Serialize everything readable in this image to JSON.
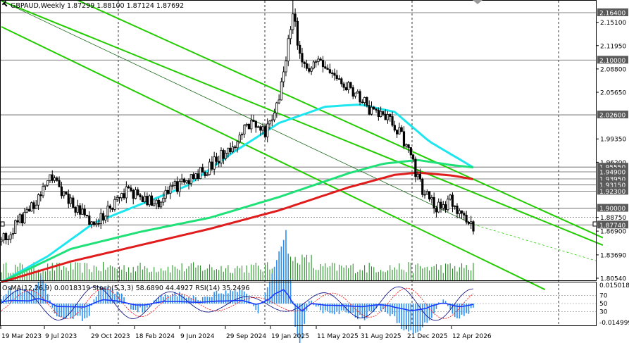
{
  "header": {
    "symbol": "GBPAUD,Weekly",
    "ohlc": "1.87299 1.88100 1.87124 1.87692"
  },
  "indicator_header": "OsMA(12,26,9) 0.0018319  Stoch(5,3,3) 58.6890 44.4927  RSI(14) 35.2496",
  "price_axis": [
    {
      "text": "2.16400",
      "y": 2.164,
      "box": true
    },
    {
      "text": "2.15100",
      "y": 2.151,
      "box": false
    },
    {
      "text": "2.11950",
      "y": 2.1195,
      "box": false
    },
    {
      "text": "2.10000",
      "y": 2.1,
      "box": true
    },
    {
      "text": "2.08800",
      "y": 2.088,
      "box": false
    },
    {
      "text": "2.05650",
      "y": 2.0565,
      "box": false
    },
    {
      "text": "2.02600",
      "y": 2.026,
      "box": true
    },
    {
      "text": "1.99350",
      "y": 1.9935,
      "box": false
    },
    {
      "text": "1.96200",
      "y": 1.962,
      "box": false
    },
    {
      "text": "1.95550",
      "y": 1.9555,
      "box": true
    },
    {
      "text": "1.94900",
      "y": 1.949,
      "box": true
    },
    {
      "text": "1.93950",
      "y": 1.9395,
      "box": true
    },
    {
      "text": "1.93150",
      "y": 1.9315,
      "box": true
    },
    {
      "text": "1.92300",
      "y": 1.923,
      "box": true
    },
    {
      "text": "1.90000",
      "y": 1.9,
      "box": true
    },
    {
      "text": "1.88750",
      "y": 1.8875,
      "box": false
    },
    {
      "text": "1.87740",
      "y": 1.8774,
      "box": true
    },
    {
      "text": "1.86900",
      "y": 1.869,
      "box": false
    },
    {
      "text": "1.83690",
      "y": 1.8369,
      "box": false
    },
    {
      "text": "1.80540",
      "y": 1.8054,
      "box": false
    }
  ],
  "indicator_axis": [
    {
      "text": "0.0150183",
      "v": "top"
    },
    {
      "text": "70",
      "v": "70"
    },
    {
      "text": "50",
      "v": "50"
    },
    {
      "text": "30",
      "v": "30"
    },
    {
      "text": "-0.014999",
      "v": "bottom"
    }
  ],
  "time_axis": [
    "19 Mar 2023",
    "9 Jul 2023",
    "29 Oct 2023",
    "18 Feb 2024",
    "9 Jun 2024",
    "29 Sep 2024",
    "19 Jan 2025",
    "11 May 2025",
    "31 Aug 2025",
    "21 Dec 2025",
    "12 Apr 2026"
  ],
  "colors": {
    "bull_candle": "#000000",
    "ma_fast": "#1ee6ee",
    "ma_mid": "#20e078",
    "ma_slow": "#e01c1c",
    "channel": "#22cc00",
    "volume": "#1a8a1a",
    "osma": "#2a8ff0",
    "stoch_main": "#000080",
    "stoch_signal": "#ff0000",
    "rsi": "#1a3aff",
    "grid_dash": "#000000"
  },
  "chart_data": {
    "type": "candlestick",
    "symbol": "GBPAUD",
    "timeframe": "Weekly",
    "ylim": [
      1.79,
      2.18
    ],
    "x_ticks": [
      "19 Mar 2023",
      "9 Jul 2023",
      "29 Oct 2023",
      "18 Feb 2024",
      "9 Jun 2024",
      "29 Sep 2024",
      "19 Jan 2025",
      "11 May 2025",
      "31 Aug 2025",
      "21 Dec 2025",
      "12 Apr 2026"
    ],
    "price_path": [
      [
        0,
        1.855
      ],
      [
        8,
        1.885
      ],
      [
        16,
        1.91
      ],
      [
        20,
        1.945
      ],
      [
        26,
        1.925
      ],
      [
        34,
        1.895
      ],
      [
        40,
        1.87
      ],
      [
        46,
        1.9
      ],
      [
        54,
        1.925
      ],
      [
        60,
        1.915
      ],
      [
        66,
        1.905
      ],
      [
        74,
        1.925
      ],
      [
        80,
        1.94
      ],
      [
        90,
        1.955
      ],
      [
        100,
        1.985
      ],
      [
        108,
        2.015
      ],
      [
        114,
        2.0
      ],
      [
        120,
        2.05
      ],
      [
        126,
        2.165
      ],
      [
        130,
        2.09
      ],
      [
        136,
        2.095
      ],
      [
        144,
        2.08
      ],
      [
        152,
        2.06
      ],
      [
        160,
        2.03
      ],
      [
        166,
        2.025
      ],
      [
        172,
        2.005
      ],
      [
        178,
        1.96
      ],
      [
        182,
        1.925
      ],
      [
        188,
        1.9
      ],
      [
        194,
        1.91
      ],
      [
        200,
        1.885
      ],
      [
        204,
        1.8769
      ]
    ],
    "moving_averages": [
      {
        "name": "fast",
        "points": [
          [
            0,
            1.8
          ],
          [
            20,
            1.835
          ],
          [
            40,
            1.88
          ],
          [
            60,
            1.905
          ],
          [
            80,
            1.93
          ],
          [
            100,
            1.975
          ],
          [
            120,
            2.015
          ],
          [
            140,
            2.037
          ],
          [
            155,
            2.04
          ],
          [
            170,
            2.03
          ],
          [
            185,
            1.99
          ],
          [
            204,
            1.955
          ]
        ]
      },
      {
        "name": "mid",
        "points": [
          [
            0,
            1.8
          ],
          [
            30,
            1.845
          ],
          [
            60,
            1.868
          ],
          [
            90,
            1.887
          ],
          [
            120,
            1.915
          ],
          [
            150,
            1.947
          ],
          [
            165,
            1.96
          ],
          [
            180,
            1.965
          ],
          [
            195,
            1.958
          ],
          [
            204,
            1.955
          ]
        ]
      },
      {
        "name": "slow",
        "points": [
          [
            0,
            1.8
          ],
          [
            30,
            1.828
          ],
          [
            60,
            1.85
          ],
          [
            90,
            1.872
          ],
          [
            120,
            1.897
          ],
          [
            150,
            1.928
          ],
          [
            170,
            1.945
          ],
          [
            180,
            1.948
          ],
          [
            195,
            1.944
          ],
          [
            204,
            1.939
          ]
        ]
      }
    ],
    "channel_lines": [
      [
        [
          0,
          2.18
        ],
        [
          260,
          1.85
        ]
      ],
      [
        [
          0,
          2.145
        ],
        [
          235,
          1.79
        ]
      ],
      [
        [
          30,
          2.185
        ],
        [
          260,
          1.86
        ]
      ]
    ],
    "horizontal_levels": [
      2.164,
      2.1,
      2.026,
      1.9555,
      1.949,
      1.9395,
      1.9315,
      1.923,
      1.9,
      1.8774
    ],
    "osma_last": 0.0018319,
    "stoch_main_last": 58.689,
    "stoch_signal_last": 44.4927,
    "rsi_last": 35.2496,
    "indicator_range": [
      -0.014999,
      0.0150183
    ]
  }
}
